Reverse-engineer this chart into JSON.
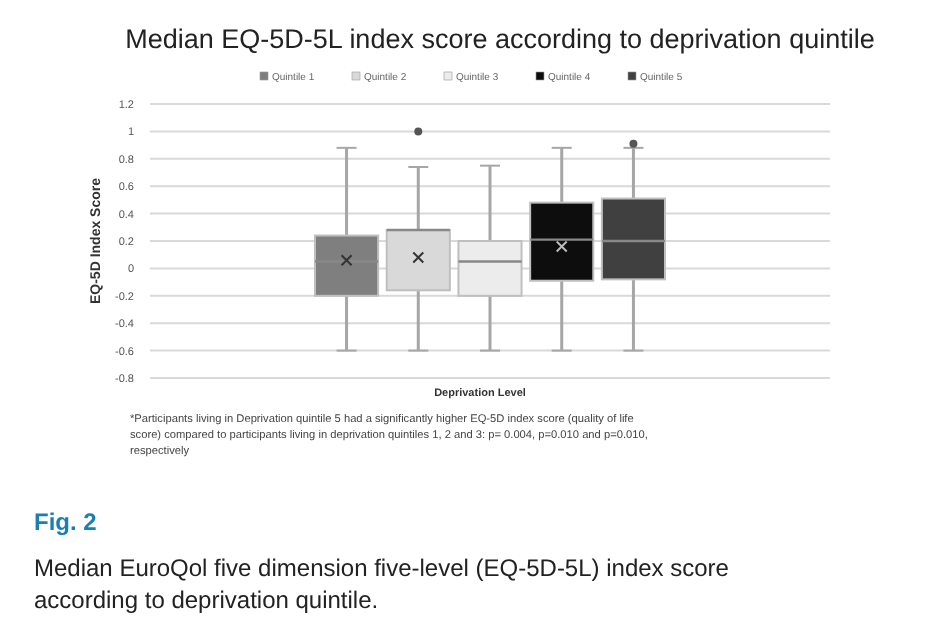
{
  "chart_data": {
    "type": "box",
    "title": "Median EQ-5D-5L index score according to deprivation quintile",
    "xlabel": "Deprivation Level",
    "ylabel": "EQ-5D Index Score",
    "categories": [
      null
    ],
    "series": [
      {
        "name": "Quintile 1",
        "color": "#7f7f7f",
        "boxes": [
          {
            "low": -0.6,
            "q1": -0.2,
            "median": 0.05,
            "q3": 0.24,
            "high": 0.88,
            "mean": 0.06
          }
        ]
      },
      {
        "name": "Quintile 2",
        "color": "#d9d9d9",
        "boxes": [
          {
            "low": -0.6,
            "q1": -0.16,
            "median": 0.28,
            "q3": 0.28,
            "high": 0.74,
            "mean": 0.08,
            "outliers": [
              1.0
            ]
          }
        ]
      },
      {
        "name": "Quintile 3",
        "color": "#ececec",
        "boxes": [
          {
            "low": -0.6,
            "q1": -0.2,
            "median": 0.05,
            "q3": 0.2,
            "high": 0.75
          }
        ]
      },
      {
        "name": "Quintile 4",
        "color": "#0d0d0d",
        "boxes": [
          {
            "low": -0.6,
            "q1": -0.09,
            "median": 0.21,
            "q3": 0.48,
            "high": 0.88,
            "mean": 0.16
          }
        ]
      },
      {
        "name": "Quintile 5",
        "color": "#404040",
        "boxes": [
          {
            "low": -0.6,
            "q1": -0.08,
            "median": 0.2,
            "q3": 0.51,
            "high": 0.88,
            "outliers": [
              0.91
            ]
          }
        ]
      }
    ],
    "ylim": [
      -0.8,
      1.2
    ],
    "yticks": [
      -0.8,
      -0.6,
      -0.4,
      -0.2,
      0,
      0.2,
      0.4,
      0.6,
      0.8,
      1,
      1.2
    ],
    "grid": "y",
    "legend": "top",
    "annotations": [
      "*Participants living in Deprivation quintile 5 had a significantly higher EQ-5D index score (quality of life score) compared to participants living in deprivation quintiles 1, 2 and 3: p= 0.004, p=0.010 and p=0.010, respectively",
      "Fig. 2",
      "Median EuroQol five dimension five-level (EQ-5D-5L) index score according to deprivation quintile."
    ]
  }
}
